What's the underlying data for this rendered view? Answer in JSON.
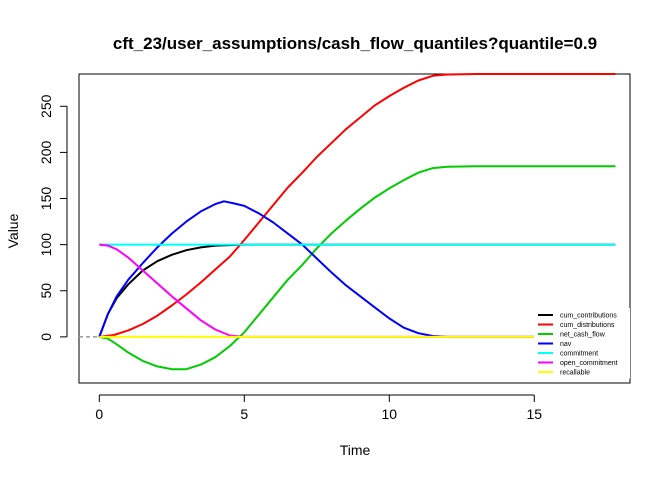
{
  "chart_data": {
    "type": "line",
    "title": "cft_23/user_assumptions/cash_flow_quantiles?quantile=0.9",
    "xlabel": "Time",
    "ylabel": "Value",
    "xlim": [
      -0.7,
      18.3
    ],
    "ylim": [
      -50,
      285
    ],
    "x_ticks": [
      0,
      5,
      10,
      15
    ],
    "y_ticks": [
      0,
      50,
      100,
      150,
      200,
      250
    ],
    "grid": false,
    "legend_position": "bottom-right",
    "reference_line": {
      "y": 0,
      "color": "#999999",
      "style": "dashed"
    },
    "series": [
      {
        "name": "cum_contributions",
        "color": "#000000",
        "x": [
          0,
          0.3,
          0.6,
          1,
          1.5,
          2,
          2.5,
          3,
          3.5,
          4,
          4.5,
          5,
          6,
          8,
          10,
          12,
          14,
          16,
          17.8
        ],
        "y": [
          0,
          25,
          42,
          57,
          72,
          82,
          89,
          94,
          97,
          99,
          99.5,
          100,
          100,
          100,
          100,
          100,
          100,
          100,
          100
        ]
      },
      {
        "name": "cum_distributions",
        "color": "#ff0000",
        "x": [
          0,
          0.5,
          1,
          1.5,
          2,
          2.5,
          3,
          3.5,
          4,
          4.5,
          5,
          5.5,
          6,
          6.5,
          7,
          7.5,
          8,
          8.5,
          9,
          9.5,
          10,
          10.5,
          11,
          11.5,
          12,
          13,
          14,
          16,
          17.8
        ],
        "y": [
          0,
          2,
          7,
          14,
          23,
          34,
          46,
          59,
          73,
          87,
          105,
          124,
          143,
          162,
          178,
          195,
          210,
          225,
          238,
          251,
          261,
          270,
          278,
          283,
          284.5,
          285,
          285,
          285,
          285
        ]
      },
      {
        "name": "net_cash_flow",
        "color": "#00cc00",
        "x": [
          0,
          0.3,
          0.6,
          1,
          1.5,
          2,
          2.5,
          3,
          3.5,
          4,
          4.5,
          5,
          5.5,
          6,
          6.5,
          7,
          7.5,
          8,
          8.5,
          9,
          9.5,
          10,
          10.5,
          11,
          11.5,
          12,
          13,
          14,
          16,
          17.8
        ],
        "y": [
          0,
          -2,
          -8,
          -17,
          -26,
          -32,
          -35,
          -35,
          -30,
          -22,
          -10,
          5,
          24,
          43,
          62,
          78,
          96,
          112,
          126,
          139,
          151,
          161,
          170,
          178,
          183,
          184.5,
          185,
          185,
          185,
          185
        ]
      },
      {
        "name": "nav",
        "color": "#0000ff",
        "x": [
          0,
          0.3,
          0.6,
          1,
          1.5,
          2,
          2.5,
          3,
          3.5,
          4,
          4.3,
          4.6,
          5,
          5.5,
          6,
          6.5,
          7,
          7.5,
          8,
          8.5,
          9,
          9.5,
          10,
          10.5,
          11,
          11.5,
          12,
          13,
          14,
          16,
          17.8
        ],
        "y": [
          0,
          25,
          44,
          62,
          80,
          97,
          112,
          125,
          136,
          144,
          147,
          145,
          142,
          134,
          124,
          112,
          100,
          85,
          70,
          56,
          44,
          32,
          20,
          10,
          4,
          1,
          0,
          0,
          0,
          0,
          0
        ]
      },
      {
        "name": "commitment",
        "color": "#00ffff",
        "x": [
          0,
          17.8
        ],
        "y": [
          100,
          100
        ]
      },
      {
        "name": "open_commitment",
        "color": "#ff00ff",
        "x": [
          0,
          0.3,
          0.6,
          1,
          1.5,
          2,
          2.5,
          3,
          3.5,
          4,
          4.5,
          5,
          6,
          8,
          10,
          12,
          14,
          16,
          17.8
        ],
        "y": [
          100,
          99,
          95,
          86,
          72,
          58,
          44,
          31,
          18,
          8,
          1.5,
          0,
          0,
          0,
          0,
          0,
          0,
          0,
          0
        ]
      },
      {
        "name": "recallable",
        "color": "#ffff00",
        "x": [
          0,
          17.8
        ],
        "y": [
          0,
          0
        ]
      }
    ]
  }
}
